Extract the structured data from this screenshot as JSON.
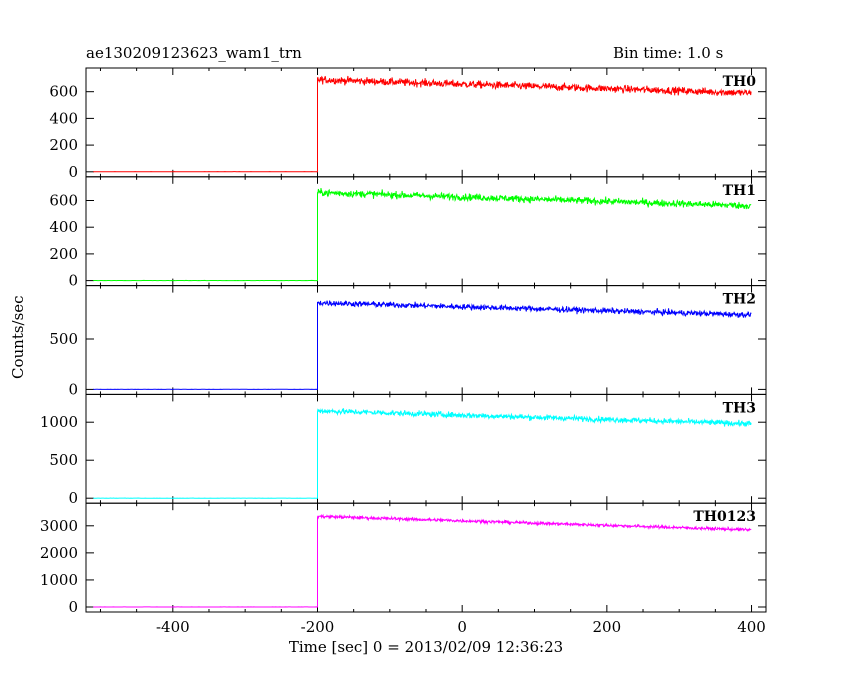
{
  "header": {
    "title": "ae130209123623_wam1_trn",
    "bin_time": "Bin time: 1.0 s"
  },
  "chart_data": {
    "type": "line",
    "xlabel": "Time [sec] 0 = 2013/02/09 12:36:23",
    "ylabel": "Counts/sec",
    "xlim": [
      -520,
      420
    ],
    "x_ticks": [
      -400,
      -200,
      0,
      200,
      400
    ],
    "x_tick_labels": [
      "-400",
      "-200",
      "0",
      "200",
      "400"
    ],
    "onset_time": -200,
    "series": [
      {
        "name": "TH0",
        "color": "#ff0000",
        "ylim": [
          0,
          740
        ],
        "yticks": [
          0,
          200,
          400,
          600
        ],
        "ytick_labels": [
          "0",
          "200",
          "400",
          "600"
        ],
        "baseline": 0,
        "start_level": 690,
        "end_level": 590,
        "noise": 30
      },
      {
        "name": "TH1",
        "color": "#00ff00",
        "ylim": [
          0,
          740
        ],
        "yticks": [
          0,
          200,
          400,
          600
        ],
        "ytick_labels": [
          "0",
          "200",
          "400",
          "600"
        ],
        "baseline": 0,
        "start_level": 660,
        "end_level": 560,
        "noise": 28
      },
      {
        "name": "TH2",
        "color": "#0000ff",
        "ylim": [
          0,
          980
        ],
        "yticks": [
          0,
          500
        ],
        "ytick_labels": [
          "0",
          "500"
        ],
        "baseline": 0,
        "start_level": 860,
        "end_level": 740,
        "noise": 30
      },
      {
        "name": "TH3",
        "color": "#00ffff",
        "ylim": [
          0,
          1300
        ],
        "yticks": [
          0,
          500,
          1000
        ],
        "ytick_labels": [
          "0",
          "500",
          "1000"
        ],
        "baseline": 0,
        "start_level": 1150,
        "end_level": 980,
        "noise": 40
      },
      {
        "name": "TH0123",
        "color": "#ff00ff",
        "ylim": [
          0,
          3650
        ],
        "yticks": [
          0,
          1000,
          2000,
          3000
        ],
        "ytick_labels": [
          "0",
          "1000",
          "2000",
          "3000"
        ],
        "baseline": 0,
        "start_level": 3350,
        "end_level": 2850,
        "noise": 60
      }
    ]
  }
}
